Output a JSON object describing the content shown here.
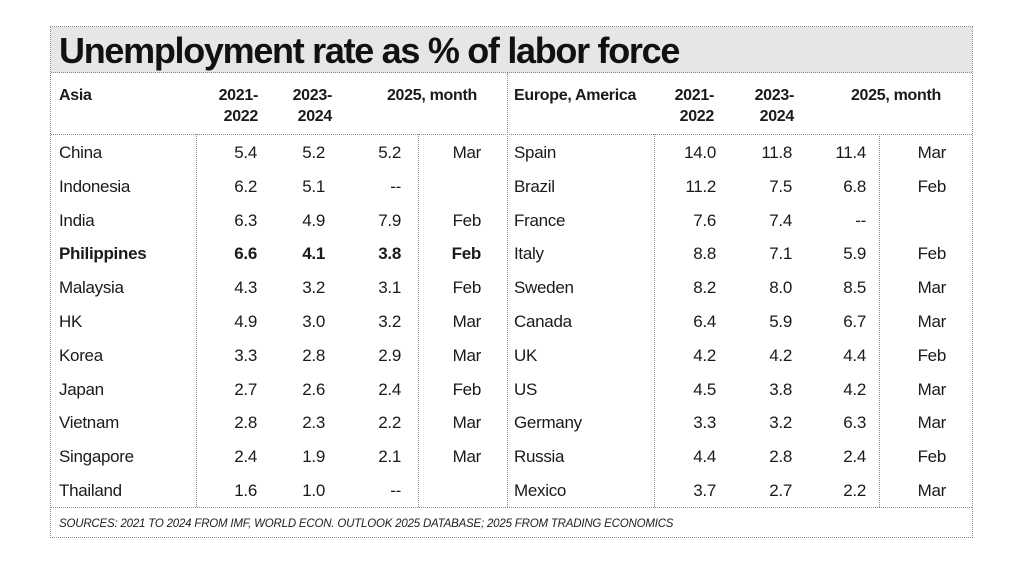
{
  "chart_data": {
    "type": "table",
    "title": "Unemployment rate as % of labor force",
    "panels": [
      {
        "name": "Asia",
        "headers": [
          "Asia",
          "2021-\n2022",
          "2023-\n2024",
          "2025, month"
        ],
        "rows": [
          {
            "country": "China",
            "v1": "5.4",
            "v2": "5.2",
            "v3": "5.2",
            "month": "Mar",
            "highlight": false
          },
          {
            "country": "Indonesia",
            "v1": "6.2",
            "v2": "5.1",
            "v3": "--",
            "month": "",
            "highlight": false
          },
          {
            "country": "India",
            "v1": "6.3",
            "v2": "4.9",
            "v3": "7.9",
            "month": "Feb",
            "highlight": false
          },
          {
            "country": "Philippines",
            "v1": "6.6",
            "v2": "4.1",
            "v3": "3.8",
            "month": "Feb",
            "highlight": true
          },
          {
            "country": "Malaysia",
            "v1": "4.3",
            "v2": "3.2",
            "v3": "3.1",
            "month": "Feb",
            "highlight": false
          },
          {
            "country": "HK",
            "v1": "4.9",
            "v2": "3.0",
            "v3": "3.2",
            "month": "Mar",
            "highlight": false
          },
          {
            "country": "Korea",
            "v1": "3.3",
            "v2": "2.8",
            "v3": "2.9",
            "month": "Mar",
            "highlight": false
          },
          {
            "country": "Japan",
            "v1": "2.7",
            "v2": "2.6",
            "v3": "2.4",
            "month": "Feb",
            "highlight": false
          },
          {
            "country": "Vietnam",
            "v1": "2.8",
            "v2": "2.3",
            "v3": "2.2",
            "month": "Mar",
            "highlight": false
          },
          {
            "country": "Singapore",
            "v1": "2.4",
            "v2": "1.9",
            "v3": "2.1",
            "month": "Mar",
            "highlight": false
          },
          {
            "country": "Thailand",
            "v1": "1.6",
            "v2": "1.0",
            "v3": "--",
            "month": "",
            "highlight": false
          }
        ]
      },
      {
        "name": "Europe, America",
        "headers": [
          "Europe, America",
          "2021-\n2022",
          "2023-\n2024",
          "2025, month"
        ],
        "rows": [
          {
            "country": "Spain",
            "v1": "14.0",
            "v2": "11.8",
            "v3": "11.4",
            "month": "Mar",
            "highlight": false
          },
          {
            "country": "Brazil",
            "v1": "11.2",
            "v2": "7.5",
            "v3": "6.8",
            "month": "Feb",
            "highlight": false
          },
          {
            "country": "France",
            "v1": "7.6",
            "v2": "7.4",
            "v3": "--",
            "month": "",
            "highlight": false
          },
          {
            "country": "Italy",
            "v1": "8.8",
            "v2": "7.1",
            "v3": "5.9",
            "month": "Feb",
            "highlight": false
          },
          {
            "country": "Sweden",
            "v1": "8.2",
            "v2": "8.0",
            "v3": "8.5",
            "month": "Mar",
            "highlight": false
          },
          {
            "country": "Canada",
            "v1": "6.4",
            "v2": "5.9",
            "v3": "6.7",
            "month": "Mar",
            "highlight": false
          },
          {
            "country": "UK",
            "v1": "4.2",
            "v2": "4.2",
            "v3": "4.4",
            "month": "Feb",
            "highlight": false
          },
          {
            "country": "US",
            "v1": "4.5",
            "v2": "3.8",
            "v3": "4.2",
            "month": "Mar",
            "highlight": false
          },
          {
            "country": "Germany",
            "v1": "3.3",
            "v2": "3.2",
            "v3": "6.3",
            "month": "Mar",
            "highlight": false
          },
          {
            "country": "Russia",
            "v1": "4.4",
            "v2": "2.8",
            "v3": "2.4",
            "month": "Feb",
            "highlight": false
          },
          {
            "country": "Mexico",
            "v1": "3.7",
            "v2": "2.7",
            "v3": "2.2",
            "month": "Mar",
            "highlight": false
          }
        ]
      }
    ],
    "source_note": "SOURCES: 2021 TO 2024 FROM IMF, WORLD ECON. OUTLOOK 2025 DATABASE; 2025 FROM TRADING ECONOMICS"
  }
}
